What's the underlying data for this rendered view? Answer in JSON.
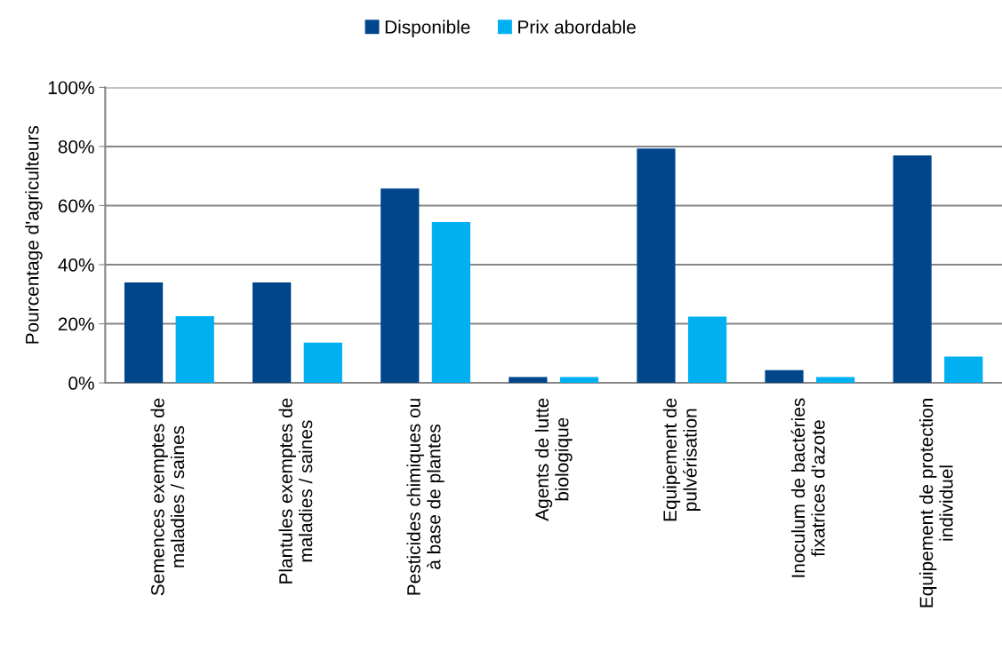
{
  "chart_data": {
    "type": "bar",
    "categories": [
      "Semences exemptes de maladies / saines",
      "Plantules exemptes de maladies / saines",
      "Pesticides chimiques ou à base de plantes",
      "Agents de lutte biologique",
      "Equipement de pulvérisation",
      "Inoculum de bactéries fixatrices d'azote",
      "Equipement de protection individuel"
    ],
    "series": [
      {
        "name": "Disponible",
        "color": "#00468b",
        "values": [
          34,
          34,
          65.8,
          2,
          79.3,
          4.3,
          77
        ]
      },
      {
        "name": "Prix abordable",
        "color": "#00b0f0",
        "values": [
          22.6,
          13.6,
          54.4,
          2,
          22.4,
          2,
          8.9
        ]
      }
    ],
    "ylabel": "Pourcentage d'agriculteurs",
    "ylim": [
      0,
      100
    ],
    "yticks": [
      {
        "value": 0,
        "label": "0%"
      },
      {
        "value": 20,
        "label": "20%"
      },
      {
        "value": 40,
        "label": "40%"
      },
      {
        "value": 60,
        "label": "60%"
      },
      {
        "value": 80,
        "label": "80%"
      },
      {
        "value": 100,
        "label": "100%"
      }
    ],
    "grid": "y",
    "legend": "top"
  }
}
